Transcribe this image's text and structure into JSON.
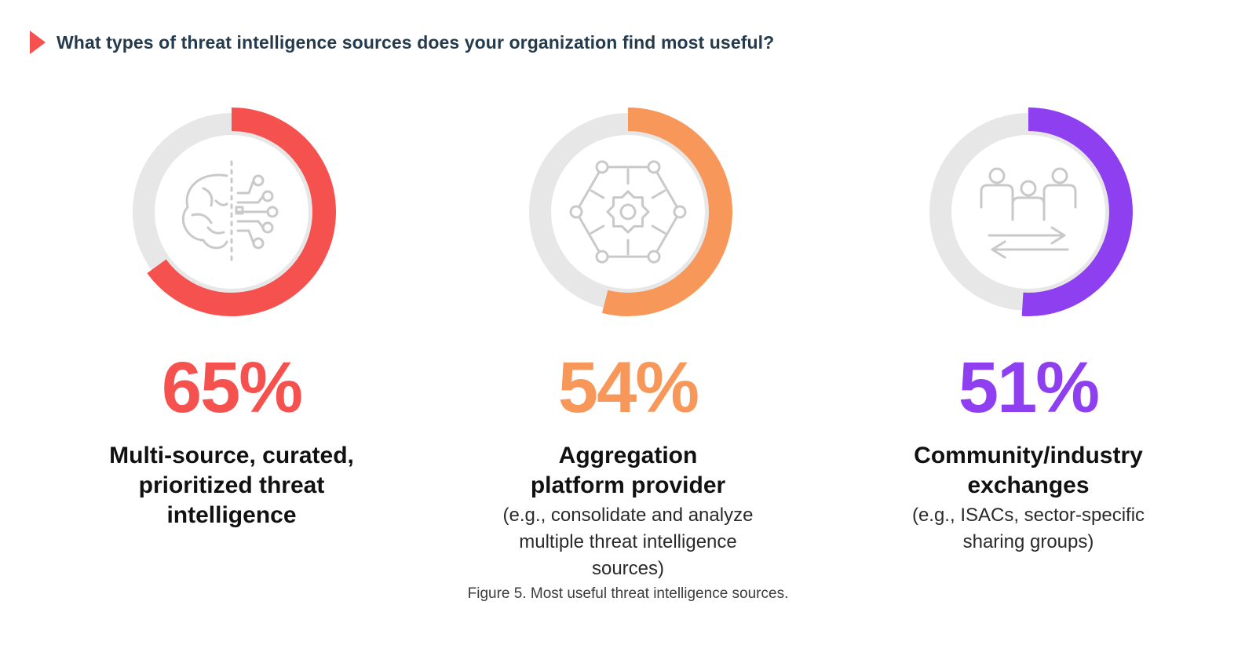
{
  "question": "What types of threat intelligence sources does your organization find most useful?",
  "caption": "Figure 5. Most useful threat intelligence sources.",
  "colors": {
    "marker": "#f5524f",
    "track": "#e7e7e7",
    "icon": "#c9c9c9",
    "question_text": "#243a4d"
  },
  "chart_data": {
    "type": "pie",
    "title": "What types of threat intelligence sources does your organization find most useful?",
    "unit": "%",
    "items": [
      {
        "value": 65,
        "display": "65%",
        "label_lines": [
          "Multi-source, curated,",
          "prioritized threat",
          "intelligence"
        ],
        "sub_lines": [],
        "color": "#f5524f",
        "icon": "brain-circuit-icon"
      },
      {
        "value": 54,
        "display": "54%",
        "label_lines": [
          "Aggregation",
          "platform provider"
        ],
        "sub_lines": [
          "(e.g., consolidate and analyze",
          "multiple threat intelligence",
          "sources)"
        ],
        "color": "#f7985a",
        "icon": "gear-network-icon"
      },
      {
        "value": 51,
        "display": "51%",
        "label_lines": [
          "Community/industry",
          "exchanges"
        ],
        "sub_lines": [
          "(e.g., ISACs, sector-specific",
          "sharing groups)"
        ],
        "color": "#8e3ff0",
        "icon": "people-exchange-icon"
      }
    ]
  }
}
